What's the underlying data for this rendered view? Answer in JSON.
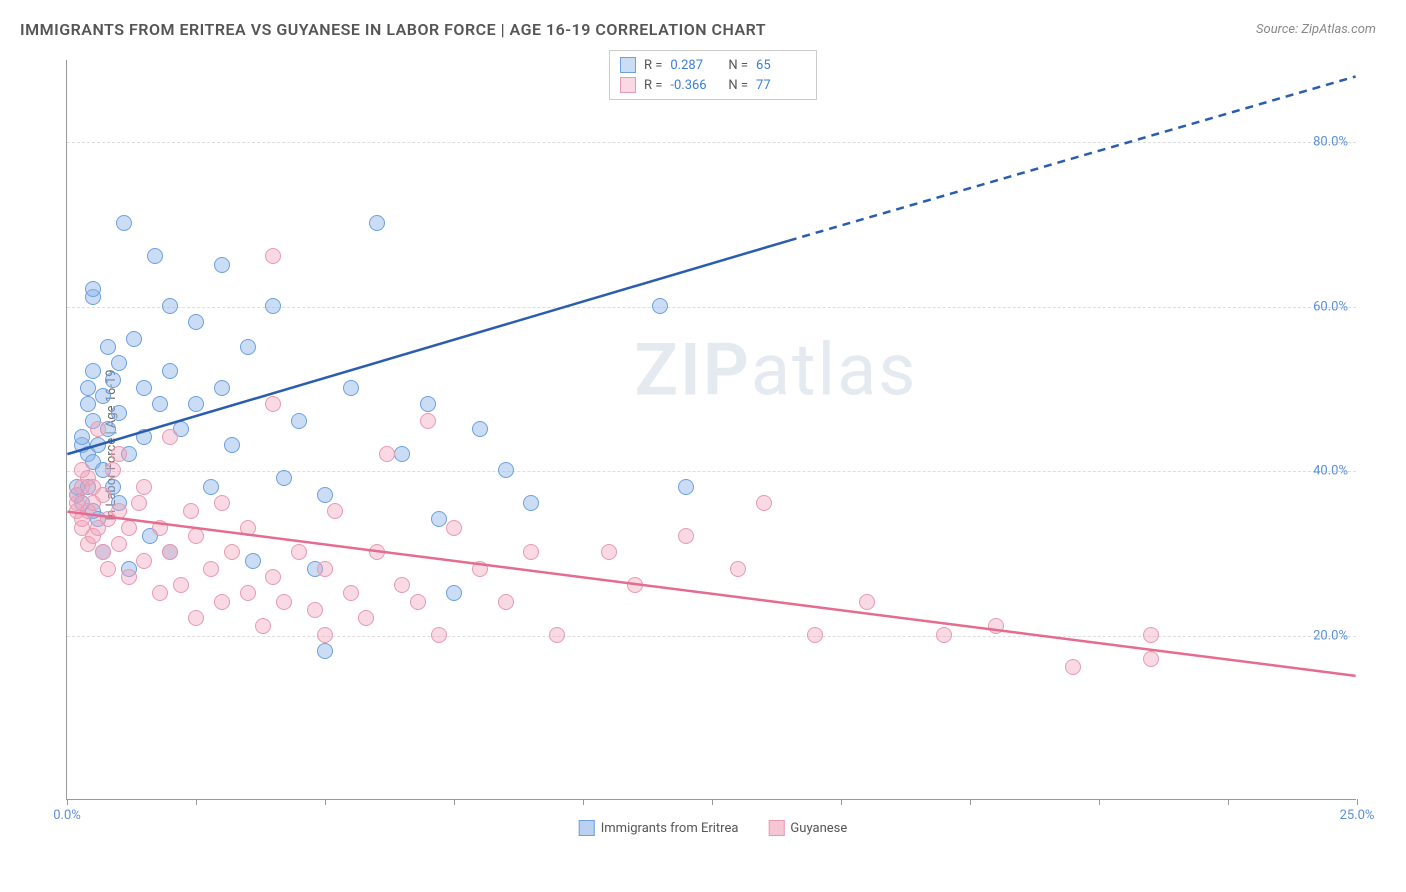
{
  "title": "IMMIGRANTS FROM ERITREA VS GUYANESE IN LABOR FORCE | AGE 16-19 CORRELATION CHART",
  "source": "Source: ZipAtlas.com",
  "y_axis_label": "In Labor Force | Age 16-19",
  "watermark_bold": "ZIP",
  "watermark_rest": "atlas",
  "chart": {
    "type": "scatter",
    "xlim": [
      0,
      25
    ],
    "ylim": [
      0,
      90
    ],
    "x_ticks": [
      0,
      2.5,
      5,
      7.5,
      10,
      12.5,
      15,
      17.5,
      20,
      22.5,
      25
    ],
    "x_tick_labels": {
      "0": "0.0%",
      "25": "25.0%"
    },
    "y_gridlines": [
      20,
      40,
      60,
      80
    ],
    "y_tick_labels": {
      "20": "20.0%",
      "40": "40.0%",
      "60": "60.0%",
      "80": "80.0%"
    },
    "background_color": "#ffffff",
    "grid_color": "#dddddd",
    "axis_color": "#999999",
    "tick_label_color": "#5a8fd8",
    "series": [
      {
        "name": "Immigrants from Eritrea",
        "key": "eritrea",
        "stroke": "#6ca0e0",
        "fill": "rgba(140,180,230,0.45)",
        "line_color": "#2a5db0",
        "R": "0.287",
        "N": "65",
        "trend": {
          "x1": 0,
          "y1": 42,
          "x2_solid": 14,
          "y2_solid": 68,
          "x2": 25,
          "y2": 88
        },
        "points": [
          [
            0.2,
            37
          ],
          [
            0.2,
            38
          ],
          [
            0.3,
            36
          ],
          [
            0.3,
            43
          ],
          [
            0.3,
            44
          ],
          [
            0.4,
            38
          ],
          [
            0.4,
            42
          ],
          [
            0.4,
            48
          ],
          [
            0.4,
            50
          ],
          [
            0.5,
            35
          ],
          [
            0.5,
            41
          ],
          [
            0.5,
            46
          ],
          [
            0.5,
            52
          ],
          [
            0.5,
            61
          ],
          [
            0.5,
            62
          ],
          [
            0.6,
            34
          ],
          [
            0.6,
            43
          ],
          [
            0.7,
            30
          ],
          [
            0.7,
            40
          ],
          [
            0.7,
            49
          ],
          [
            0.8,
            45
          ],
          [
            0.8,
            55
          ],
          [
            0.9,
            38
          ],
          [
            0.9,
            51
          ],
          [
            1.0,
            36
          ],
          [
            1.0,
            47
          ],
          [
            1.0,
            53
          ],
          [
            1.1,
            70
          ],
          [
            1.2,
            28
          ],
          [
            1.2,
            42
          ],
          [
            1.3,
            56
          ],
          [
            1.5,
            44
          ],
          [
            1.5,
            50
          ],
          [
            1.6,
            32
          ],
          [
            1.7,
            66
          ],
          [
            1.8,
            48
          ],
          [
            2.0,
            30
          ],
          [
            2.0,
            52
          ],
          [
            2.0,
            60
          ],
          [
            2.2,
            45
          ],
          [
            2.5,
            48
          ],
          [
            2.5,
            58
          ],
          [
            2.8,
            38
          ],
          [
            3.0,
            50
          ],
          [
            3.0,
            65
          ],
          [
            3.2,
            43
          ],
          [
            3.5,
            55
          ],
          [
            3.6,
            29
          ],
          [
            4.0,
            60
          ],
          [
            4.2,
            39
          ],
          [
            4.5,
            46
          ],
          [
            4.8,
            28
          ],
          [
            5.0,
            18
          ],
          [
            5.0,
            37
          ],
          [
            5.5,
            50
          ],
          [
            6.0,
            70
          ],
          [
            6.5,
            42
          ],
          [
            7.0,
            48
          ],
          [
            7.2,
            34
          ],
          [
            7.5,
            25
          ],
          [
            8.0,
            45
          ],
          [
            8.5,
            40
          ],
          [
            9.0,
            36
          ],
          [
            11.5,
            60
          ],
          [
            12.0,
            38
          ]
        ]
      },
      {
        "name": "Guyanese",
        "key": "guyanese",
        "stroke": "#e89ab0",
        "fill": "rgba(240,160,185,0.40)",
        "line_color": "#e56b8f",
        "R": "-0.366",
        "N": "77",
        "trend": {
          "x1": 0,
          "y1": 35,
          "x2_solid": 25,
          "y2_solid": 15,
          "x2": 25,
          "y2": 15
        },
        "points": [
          [
            0.2,
            35
          ],
          [
            0.2,
            36
          ],
          [
            0.2,
            37
          ],
          [
            0.3,
            33
          ],
          [
            0.3,
            34
          ],
          [
            0.3,
            38
          ],
          [
            0.3,
            40
          ],
          [
            0.4,
            31
          ],
          [
            0.4,
            35
          ],
          [
            0.4,
            39
          ],
          [
            0.5,
            32
          ],
          [
            0.5,
            36
          ],
          [
            0.5,
            38
          ],
          [
            0.6,
            33
          ],
          [
            0.6,
            45
          ],
          [
            0.7,
            30
          ],
          [
            0.7,
            37
          ],
          [
            0.8,
            28
          ],
          [
            0.8,
            34
          ],
          [
            0.9,
            40
          ],
          [
            1.0,
            31
          ],
          [
            1.0,
            35
          ],
          [
            1.0,
            42
          ],
          [
            1.2,
            27
          ],
          [
            1.2,
            33
          ],
          [
            1.4,
            36
          ],
          [
            1.5,
            29
          ],
          [
            1.5,
            38
          ],
          [
            1.8,
            25
          ],
          [
            1.8,
            33
          ],
          [
            2.0,
            30
          ],
          [
            2.0,
            44
          ],
          [
            2.2,
            26
          ],
          [
            2.4,
            35
          ],
          [
            2.5,
            22
          ],
          [
            2.5,
            32
          ],
          [
            2.8,
            28
          ],
          [
            3.0,
            24
          ],
          [
            3.0,
            36
          ],
          [
            3.2,
            30
          ],
          [
            3.5,
            25
          ],
          [
            3.5,
            33
          ],
          [
            3.8,
            21
          ],
          [
            4.0,
            27
          ],
          [
            4.0,
            48
          ],
          [
            4.0,
            66
          ],
          [
            4.2,
            24
          ],
          [
            4.5,
            30
          ],
          [
            4.8,
            23
          ],
          [
            5.0,
            20
          ],
          [
            5.0,
            28
          ],
          [
            5.2,
            35
          ],
          [
            5.5,
            25
          ],
          [
            5.8,
            22
          ],
          [
            6.0,
            30
          ],
          [
            6.2,
            42
          ],
          [
            6.5,
            26
          ],
          [
            6.8,
            24
          ],
          [
            7.0,
            46
          ],
          [
            7.2,
            20
          ],
          [
            7.5,
            33
          ],
          [
            8.0,
            28
          ],
          [
            8.5,
            24
          ],
          [
            9.0,
            30
          ],
          [
            9.5,
            20
          ],
          [
            10.5,
            30
          ],
          [
            11.0,
            26
          ],
          [
            12.0,
            32
          ],
          [
            13.0,
            28
          ],
          [
            13.5,
            36
          ],
          [
            14.5,
            20
          ],
          [
            15.5,
            24
          ],
          [
            17.0,
            20
          ],
          [
            18.0,
            21
          ],
          [
            19.5,
            16
          ],
          [
            21.0,
            17
          ],
          [
            21.0,
            20
          ]
        ]
      }
    ]
  },
  "legend_bottom": [
    {
      "label": "Immigrants from Eritrea",
      "stroke": "#6ca0e0",
      "fill": "rgba(140,180,230,0.6)"
    },
    {
      "label": "Guyanese",
      "stroke": "#e89ab0",
      "fill": "rgba(240,160,185,0.6)"
    }
  ]
}
